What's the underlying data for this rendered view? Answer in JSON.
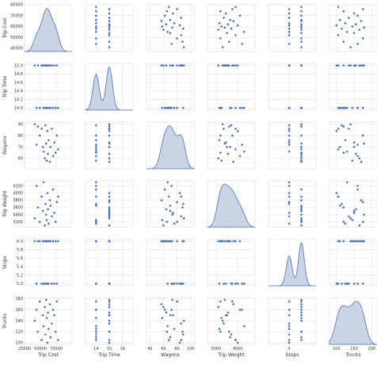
{
  "chart_data": {
    "type": "scatter",
    "kind": "pairplot",
    "variables": [
      "Trip Cost",
      "Trip Time",
      "Wagons",
      "Trip Weight",
      "Stops",
      "Trucks"
    ],
    "diagonal": "kde",
    "grid": true,
    "point_color": "#4c72b0",
    "kde_fill": "#b9c5dc",
    "kde_line": "#4c72b0",
    "axes": {
      "Trip Cost": {
        "range": [
          25000,
          100000
        ],
        "ticks": [
          25000,
          50000,
          75000
        ],
        "tick_labels": [
          "25000",
          "50000",
          "75000"
        ],
        "y_range": [
          37000,
          80000
        ],
        "y_ticks": [
          40000,
          50000,
          60000,
          70000,
          80000
        ],
        "y_tick_labels": [
          "40000",
          "50000",
          "60000",
          "70000",
          "80000"
        ]
      },
      "Trip Time": {
        "range": [
          13.2,
          16.8
        ],
        "ticks": [
          14,
          15,
          16
        ],
        "tick_labels": [
          "14",
          "15",
          "16"
        ],
        "y_range": [
          13.95,
          15.05
        ],
        "y_ticks": [
          14.0,
          14.2,
          14.4,
          14.6,
          14.8,
          15.0
        ],
        "y_tick_labels": [
          "14.0",
          "14.2",
          "14.4",
          "14.6",
          "14.8",
          "15.0"
        ]
      },
      "Wagons": {
        "range": [
          35,
          105
        ],
        "ticks": [
          40,
          60,
          80,
          100
        ],
        "tick_labels": [
          "40",
          "60",
          "80",
          "100"
        ],
        "y_range": [
          51,
          92
        ],
        "y_ticks": [
          60,
          70,
          80,
          90
        ],
        "y_tick_labels": [
          "60",
          "70",
          "80",
          "90"
        ]
      },
      "Trip Weight": {
        "range": [
          2600,
          4800
        ],
        "ticks": [
          3000,
          4000
        ],
        "tick_labels": [
          "3000",
          "4000"
        ],
        "y_range": [
          3050,
          4350
        ],
        "y_ticks": [
          3200,
          3400,
          3600,
          3800,
          4000,
          4200
        ],
        "y_tick_labels": [
          "3200",
          "3400",
          "3600",
          "3800",
          "4000",
          "4200"
        ]
      },
      "Stops": {
        "range": [
          3.3,
          7.2
        ],
        "ticks": [
          5
        ],
        "tick_labels": [
          "5"
        ],
        "y_range": [
          4.95,
          6.05
        ],
        "y_ticks": [
          5.0,
          5.2,
          5.4,
          5.6,
          5.8,
          6.0
        ],
        "y_tick_labels": [
          "5.0",
          "5.2",
          "5.4",
          "5.6",
          "5.8",
          "6.0"
        ]
      },
      "Trucks": {
        "range": [
          80,
          215
        ],
        "ticks": [
          100,
          150,
          200
        ],
        "tick_labels": [
          "100",
          "150",
          "200"
        ],
        "y_range": [
          97,
          182
        ],
        "y_ticks": [
          100,
          120,
          140,
          160,
          180
        ],
        "y_tick_labels": [
          "100",
          "120",
          "140",
          "160",
          "180"
        ]
      }
    },
    "data": {
      "Trip Cost": [
        41000,
        44000,
        46000,
        49000,
        52000,
        54000,
        55000,
        57000,
        58000,
        59000,
        60000,
        61000,
        62000,
        63000,
        65000,
        66000,
        68000,
        70000,
        72000,
        74000,
        76000,
        78000
      ],
      "Trip Time": [
        15,
        14,
        15,
        14,
        15,
        15,
        14,
        15,
        14,
        15,
        14,
        15,
        15,
        14,
        15,
        14,
        15,
        14,
        15,
        14,
        15,
        14
      ],
      "Wagons": [
        90,
        72,
        88,
        80,
        86,
        70,
        66,
        60,
        89,
        73,
        58,
        84,
        64,
        76,
        57,
        70,
        86,
        62,
        74,
        65,
        80,
        68
      ],
      "Trip Weight": [
        3300,
        4200,
        3600,
        3200,
        3900,
        3500,
        4300,
        3100,
        3700,
        3400,
        3250,
        4000,
        3550,
        3150,
        3800,
        3650,
        3350,
        4100,
        3450,
        3200,
        3750,
        3900
      ],
      "Stops": [
        6,
        5,
        6,
        6,
        5,
        6,
        5,
        6,
        5,
        6,
        6,
        5,
        6,
        5,
        6,
        6,
        5,
        6,
        5,
        6,
        5,
        6
      ],
      "Trucks": [
        140,
        160,
        120,
        175,
        105,
        150,
        130,
        165,
        115,
        178,
        145,
        100,
        155,
        125,
        170,
        110,
        135,
        160,
        150,
        120,
        175,
        105
      ]
    }
  }
}
